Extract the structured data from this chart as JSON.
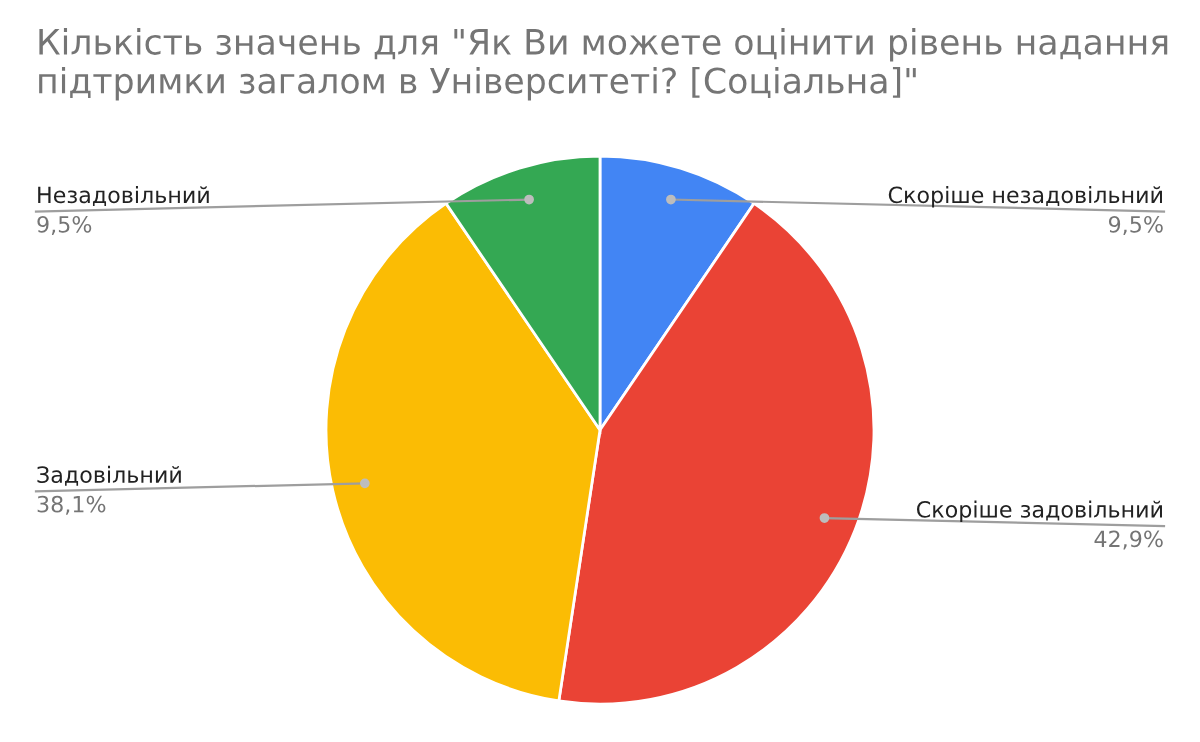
{
  "chart_data": {
    "type": "pie",
    "title": "Кількість значень для \"Як Ви можете оцінити рівень надання підтримки загалом в Університеті? [Соціальна]\"",
    "categories": [
      "Скоріше незадовільний",
      "Скоріше задовільний",
      "Задовільний",
      "Незадовільний"
    ],
    "values": [
      9.5,
      42.9,
      38.1,
      9.5
    ],
    "value_labels": [
      "9,5%",
      "42,9%",
      "38,1%",
      "9,5%"
    ],
    "colors": [
      "#4285f4",
      "#ea4335",
      "#fbbc04",
      "#34a853"
    ],
    "legend": false
  }
}
